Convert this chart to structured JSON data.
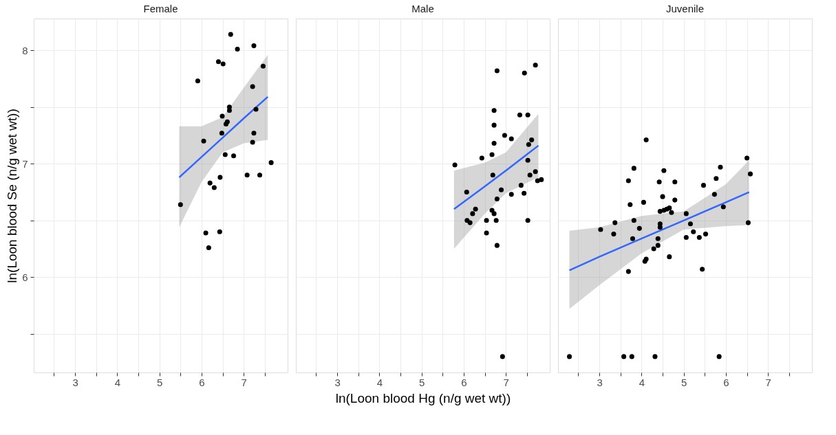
{
  "chart_data": [
    {
      "type": "scatter",
      "title": "Female",
      "ylabel": "ln(Loon blood Se (n/g wet wt))",
      "xlim": [
        2.02,
        8.04
      ],
      "xticks": [
        {
          "value": 2.5,
          "label": null
        },
        3,
        {
          "value": 3.5,
          "label": null
        },
        4,
        {
          "value": 4.5,
          "label": null
        },
        5,
        {
          "value": 5.5,
          "label": null
        },
        6,
        {
          "value": 6.5,
          "label": null
        },
        7,
        {
          "value": 7.5,
          "label": null
        }
      ],
      "ylim": [
        5.16,
        8.28
      ],
      "yticks": [
        {
          "value": 5.5,
          "label": null
        },
        6,
        {
          "value": 6.5,
          "label": null
        },
        7,
        {
          "value": 7.5,
          "label": null
        },
        8
      ],
      "grid": true,
      "marker": "circle",
      "series": [
        {
          "color": "#000000",
          "x": [
            5.5,
            5.91,
            6.05,
            6.1,
            6.17,
            6.2,
            6.3,
            6.4,
            6.51,
            6.43,
            6.44,
            6.48,
            6.49,
            6.56,
            6.58,
            6.61,
            6.66,
            6.66,
            6.69,
            6.76,
            6.85,
            7.08,
            7.21,
            7.21,
            7.24,
            7.24,
            7.29,
            7.38,
            7.46,
            7.65
          ],
          "values": [
            6.64,
            7.73,
            7.2,
            6.39,
            6.26,
            6.83,
            6.79,
            7.9,
            7.88,
            6.4,
            6.88,
            7.27,
            7.42,
            7.08,
            7.35,
            7.37,
            7.5,
            7.47,
            8.14,
            7.07,
            8.01,
            6.9,
            7.19,
            7.68,
            8.04,
            7.27,
            7.48,
            6.9,
            7.86,
            7.01
          ]
        },
        {
          "type": "line",
          "marker": "none",
          "color": "#3366ff",
          "x": [
            5.47,
            6.0,
            6.5,
            7.0,
            7.57
          ],
          "values": [
            6.88,
            7.06,
            7.23,
            7.4,
            7.59
          ],
          "lower": [
            6.44,
            6.84,
            7.1,
            7.18,
            7.21
          ],
          "upper": [
            7.33,
            7.33,
            7.41,
            7.67,
            7.96
          ]
        }
      ]
    },
    {
      "type": "scatter",
      "title": "Male",
      "xlabel": "ln(Loon blood Hg (n/g wet wt))",
      "xlim": [
        2.02,
        8.04
      ],
      "xticks": [
        {
          "value": 2.5,
          "label": null
        },
        3,
        {
          "value": 3.5,
          "label": null
        },
        4,
        {
          "value": 4.5,
          "label": null
        },
        5,
        {
          "value": 5.5,
          "label": null
        },
        6,
        {
          "value": 6.5,
          "label": null
        },
        7,
        {
          "value": 7.5,
          "label": null
        }
      ],
      "ylim": [
        5.16,
        8.28
      ],
      "yticks": [
        {
          "value": 5.5,
          "label": null
        },
        6,
        {
          "value": 6.5,
          "label": null
        },
        7,
        {
          "value": 7.5,
          "label": null
        },
        8
      ],
      "grid": true,
      "marker": "circle",
      "tick_labels": "x",
      "series": [
        {
          "color": "#000000",
          "x": [
            5.79,
            6.07,
            6.08,
            6.15,
            6.21,
            6.28,
            6.43,
            6.54,
            6.54,
            6.67,
            6.69,
            6.67,
            6.72,
            6.72,
            6.72,
            6.72,
            6.77,
            6.79,
            6.79,
            6.79,
            6.89,
            6.92,
            6.97,
            7.13,
            7.13,
            7.33,
            7.36,
            7.43,
            7.44,
            7.52,
            7.52,
            7.52,
            7.54,
            7.61,
            7.57,
            7.7,
            7.75,
            7.84,
            7.7
          ],
          "values": [
            6.99,
            6.75,
            6.5,
            6.48,
            6.56,
            6.6,
            7.05,
            6.5,
            6.39,
            7.08,
            6.9,
            6.59,
            6.56,
            7.18,
            7.34,
            7.47,
            6.5,
            6.69,
            6.28,
            7.82,
            6.77,
            5.3,
            7.25,
            7.22,
            6.73,
            7.43,
            6.81,
            6.74,
            7.8,
            7.43,
            6.5,
            7.03,
            7.17,
            7.21,
            6.9,
            6.93,
            6.85,
            6.86,
            7.87
          ]
        },
        {
          "type": "line",
          "marker": "none",
          "color": "#3366ff",
          "x": [
            5.77,
            6.5,
            7.0,
            7.77
          ],
          "values": [
            6.6,
            6.8,
            6.94,
            7.16
          ],
          "lower": [
            6.25,
            6.56,
            6.74,
            6.88
          ],
          "upper": [
            6.94,
            7.01,
            7.1,
            7.44
          ]
        }
      ]
    },
    {
      "type": "scatter",
      "title": "Juvenile",
      "xlim": [
        2.02,
        8.04
      ],
      "xticks": [
        {
          "value": 2.5,
          "label": null
        },
        3,
        {
          "value": 3.5,
          "label": null
        },
        4,
        {
          "value": 4.5,
          "label": null
        },
        5,
        {
          "value": 5.5,
          "label": null
        },
        6,
        {
          "value": 6.5,
          "label": null
        },
        7,
        {
          "value": 7.5,
          "label": null
        }
      ],
      "ylim": [
        5.16,
        8.28
      ],
      "yticks": [
        {
          "value": 5.5,
          "label": null
        },
        6,
        {
          "value": 6.5,
          "label": null
        },
        7,
        {
          "value": 7.5,
          "label": null
        },
        8
      ],
      "grid": true,
      "marker": "circle",
      "tick_labels": "x",
      "series": [
        {
          "color": "#000000",
          "x": [
            2.29,
            3.03,
            3.34,
            3.37,
            3.58,
            3.69,
            3.69,
            3.73,
            3.77,
            3.79,
            3.82,
            3.82,
            3.95,
            4.05,
            4.08,
            4.11,
            4.11,
            4.29,
            4.32,
            4.39,
            4.39,
            4.42,
            4.44,
            4.44,
            4.44,
            4.5,
            4.53,
            4.53,
            4.6,
            4.66,
            4.66,
            4.71,
            4.79,
            4.79,
            5.06,
            5.06,
            5.16,
            5.23,
            5.37,
            5.44,
            5.47,
            5.52,
            5.73,
            5.77,
            5.84,
            5.87,
            5.94,
            6.5,
            6.53,
            6.58
          ],
          "values": [
            5.3,
            6.42,
            6.38,
            6.48,
            5.3,
            6.85,
            6.05,
            6.64,
            5.3,
            6.34,
            6.96,
            6.5,
            6.43,
            6.66,
            6.14,
            6.16,
            7.21,
            6.25,
            5.3,
            6.28,
            6.34,
            6.84,
            6.47,
            6.58,
            6.44,
            6.71,
            6.94,
            6.59,
            6.6,
            6.61,
            6.18,
            6.57,
            6.84,
            6.68,
            6.56,
            6.35,
            6.47,
            6.4,
            6.35,
            6.07,
            6.81,
            6.38,
            6.73,
            6.87,
            5.3,
            6.97,
            6.62,
            7.05,
            6.48,
            6.91
          ]
        },
        {
          "type": "line",
          "marker": "none",
          "color": "#3366ff",
          "x": [
            2.29,
            3.0,
            4.0,
            5.0,
            6.0,
            6.55
          ],
          "values": [
            6.06,
            6.18,
            6.34,
            6.5,
            6.66,
            6.75
          ],
          "lower": [
            5.72,
            5.93,
            6.21,
            6.42,
            6.45,
            6.46
          ],
          "upper": [
            6.41,
            6.44,
            6.54,
            6.58,
            6.82,
            7.03
          ]
        }
      ]
    }
  ]
}
